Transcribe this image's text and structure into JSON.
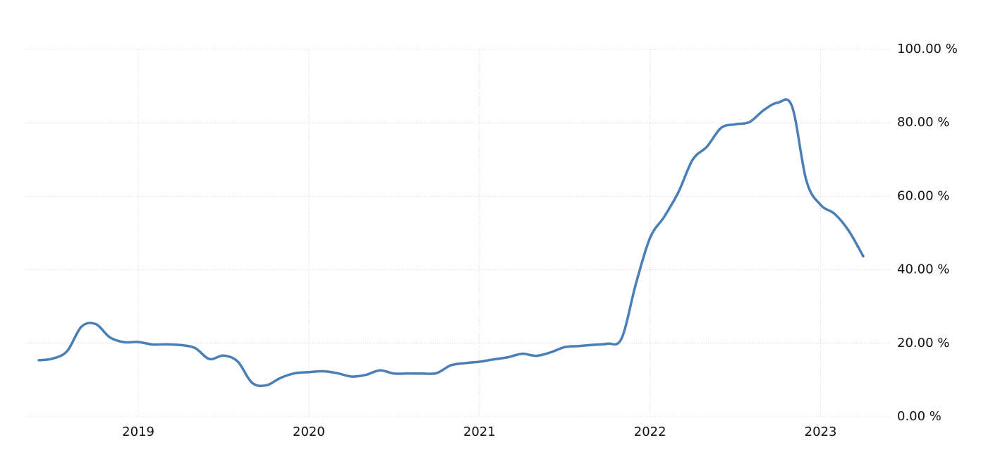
{
  "chart_data": {
    "type": "line",
    "categories": [
      null,
      null,
      null,
      null,
      null,
      null,
      null,
      "2019",
      null,
      null,
      null,
      null,
      null,
      null,
      null,
      null,
      null,
      null,
      null,
      "2020",
      null,
      null,
      null,
      null,
      null,
      null,
      null,
      null,
      null,
      null,
      null,
      "2021",
      null,
      null,
      null,
      null,
      null,
      null,
      null,
      null,
      null,
      null,
      null,
      "2022",
      null,
      null,
      null,
      null,
      null,
      null,
      null,
      null,
      null,
      null,
      null,
      "2023",
      null,
      null,
      null
    ],
    "values": [
      15.39,
      15.85,
      17.9,
      24.52,
      25.24,
      21.62,
      20.3,
      20.35,
      19.67,
      19.71,
      19.5,
      18.71,
      15.72,
      16.65,
      15.01,
      9.26,
      8.55,
      10.56,
      11.84,
      12.15,
      12.37,
      11.86,
      10.94,
      11.39,
      12.62,
      11.76,
      11.77,
      11.75,
      11.89,
      14.03,
      14.6,
      14.97,
      15.61,
      16.19,
      17.14,
      16.59,
      17.53,
      18.95,
      19.25,
      19.58,
      19.89,
      21.31,
      36.08,
      48.69,
      54.44,
      61.14,
      69.97,
      73.5,
      78.62,
      79.6,
      80.21,
      83.45,
      85.51,
      84.39,
      64.27,
      57.68,
      55.18,
      50.51,
      43.68
    ],
    "color": "#4a7fb5",
    "ylim": [
      0,
      100
    ],
    "yticks": [
      {
        "value": 0,
        "label": "0.00 %"
      },
      {
        "value": 20,
        "label": "20.00 %"
      },
      {
        "value": 40,
        "label": "40.00 %"
      },
      {
        "value": 60,
        "label": "60.00 %"
      },
      {
        "value": 80,
        "label": "80.00 %"
      },
      {
        "value": 100,
        "label": "100.00 %"
      }
    ],
    "grid": true
  }
}
